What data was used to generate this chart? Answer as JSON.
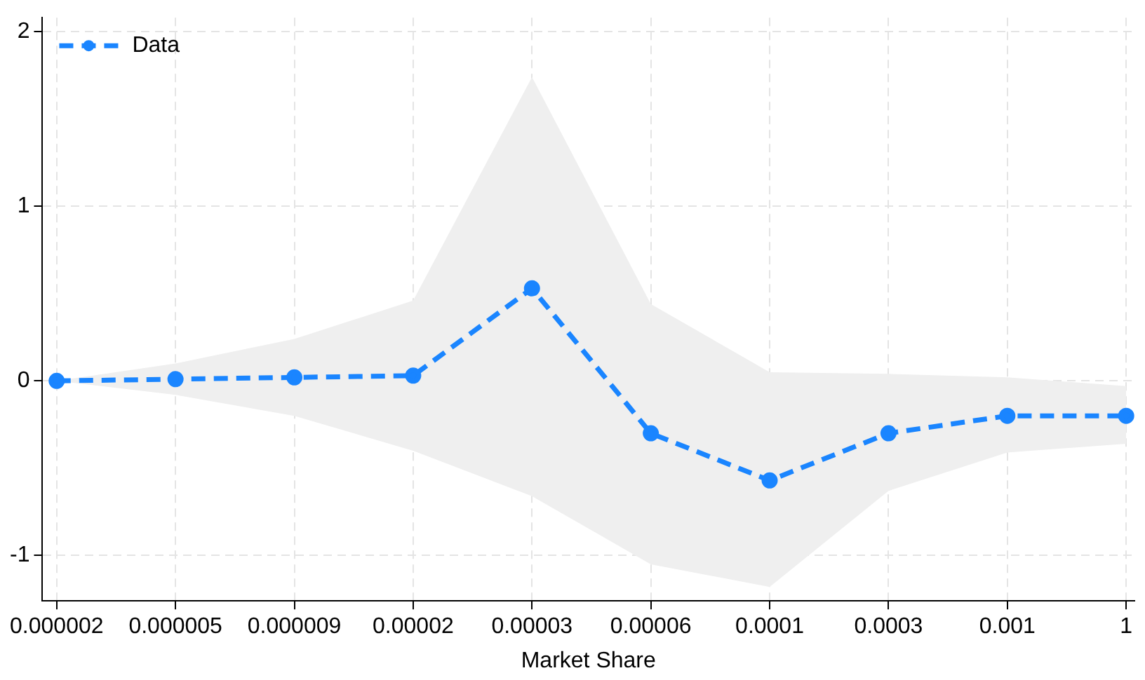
{
  "chart_data": {
    "type": "line",
    "xlabel": "Market Share",
    "categories": [
      "0.000002",
      "0.000005",
      "0.000009",
      "0.00002",
      "0.00003",
      "0.00006",
      "0.0001",
      "0.0003",
      "0.001",
      "1"
    ],
    "series": [
      {
        "name": "Data",
        "color": "#1a85ff",
        "values": [
          0,
          0.01,
          0.02,
          0.03,
          0.53,
          -0.3,
          -0.57,
          -0.3,
          -0.2,
          -0.2
        ],
        "lower": [
          0,
          -0.08,
          -0.2,
          -0.4,
          -0.66,
          -1.05,
          -1.18,
          -0.63,
          -0.41,
          -0.36
        ],
        "upper": [
          0,
          0.1,
          0.24,
          0.46,
          1.74,
          0.44,
          0.05,
          0.04,
          0.02,
          -0.03
        ]
      }
    ],
    "ylim": [
      -1.26,
      2.08
    ],
    "yticks": [
      -1,
      0,
      1,
      2
    ],
    "grid": true,
    "legend": "top left",
    "marker": "circle",
    "line_style": "dashed"
  }
}
